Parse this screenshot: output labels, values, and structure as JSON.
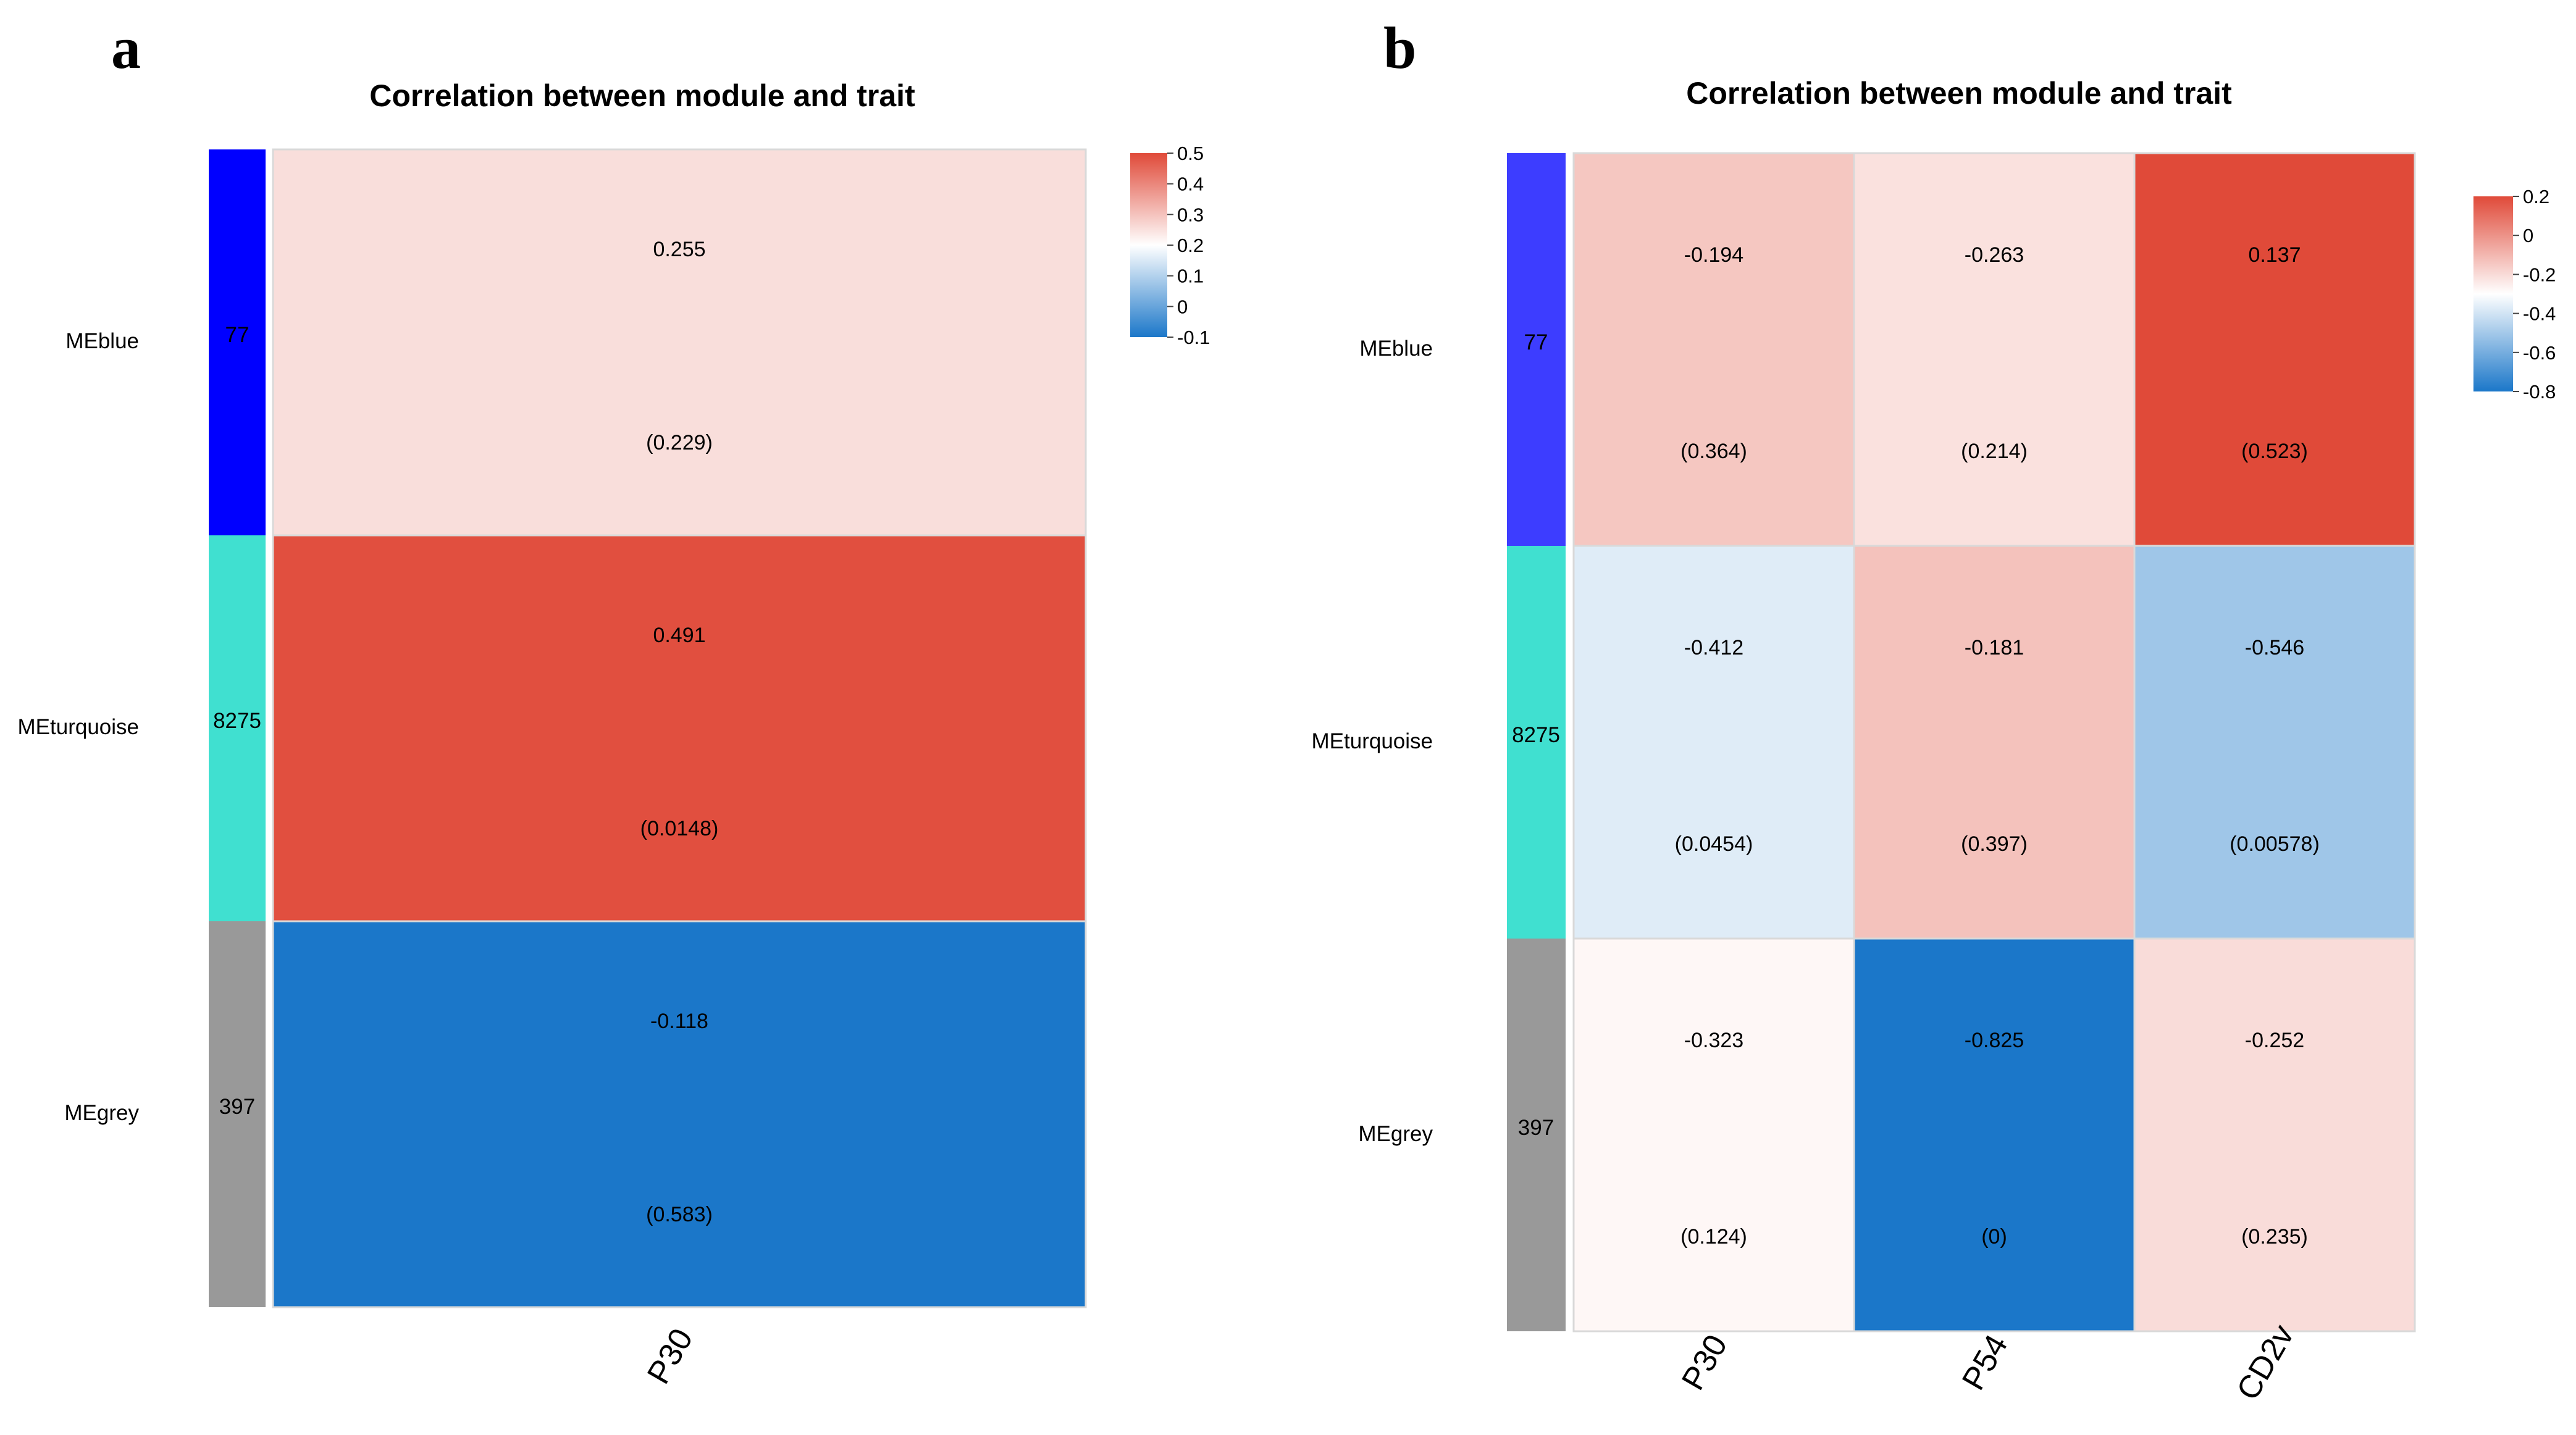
{
  "panels": {
    "a": {
      "letter": "a",
      "title": "Correlation between module and trait"
    },
    "b": {
      "letter": "b",
      "title": "Correlation between module and trait"
    }
  },
  "chart_data": [
    {
      "type": "heatmap",
      "panel": "a",
      "title": "Correlation between module and trait",
      "modules": [
        {
          "name": "MEblue",
          "count": "77",
          "color": "#0000ff"
        },
        {
          "name": "MEturquoise",
          "count": "8275",
          "color": "#40e0d0"
        },
        {
          "name": "MEgrey",
          "count": "397",
          "color": "#999999"
        }
      ],
      "traits": [
        "P30"
      ],
      "correlations": [
        [
          0.255
        ],
        [
          0.491
        ],
        [
          -0.118
        ]
      ],
      "pvalues": [
        [
          "(0.229)"
        ],
        [
          "(0.0148)"
        ],
        [
          "(0.583)"
        ]
      ],
      "corr_labels": [
        [
          "0.255"
        ],
        [
          "0.491"
        ],
        [
          "-0.118"
        ]
      ],
      "legend": {
        "range": [
          -0.1,
          0.5
        ],
        "ticks": [
          "0.5",
          "0.4",
          "0.3",
          "0.2",
          "0.1",
          "0",
          "-0.1"
        ],
        "low_color": "#1b77c9",
        "mid_color": "#ffffff",
        "high_color": "#e04a39"
      }
    },
    {
      "type": "heatmap",
      "panel": "b",
      "title": "Correlation between module and trait",
      "modules": [
        {
          "name": "MEblue",
          "count": "77",
          "color": "#3d3dff"
        },
        {
          "name": "MEturquoise",
          "count": "8275",
          "color": "#40e0d0"
        },
        {
          "name": "MEgrey",
          "count": "397",
          "color": "#999999"
        }
      ],
      "traits": [
        "P30",
        "P54",
        "CD2v"
      ],
      "correlations": [
        [
          -0.194,
          -0.263,
          0.137
        ],
        [
          -0.412,
          -0.181,
          -0.546
        ],
        [
          -0.323,
          -0.825,
          -0.252
        ]
      ],
      "pvalues": [
        [
          "(0.364)",
          "(0.214)",
          "(0.523)"
        ],
        [
          "(0.0454)",
          "(0.397)",
          "(0.00578)"
        ],
        [
          "(0.124)",
          "(0)",
          "(0.235)"
        ]
      ],
      "corr_labels": [
        [
          "-0.194",
          "-0.263",
          "0.137"
        ],
        [
          "-0.412",
          "-0.181",
          "-0.546"
        ],
        [
          "-0.323",
          "-0.825",
          "-0.252"
        ]
      ],
      "legend": {
        "range": [
          -0.825,
          0.137
        ],
        "ticks": [
          "0.2",
          "0",
          "-0.2",
          "-0.4",
          "-0.6",
          "-0.8"
        ],
        "low_color": "#1b77c9",
        "mid_color": "#ffffff",
        "high_color": "#e04a39"
      }
    }
  ]
}
